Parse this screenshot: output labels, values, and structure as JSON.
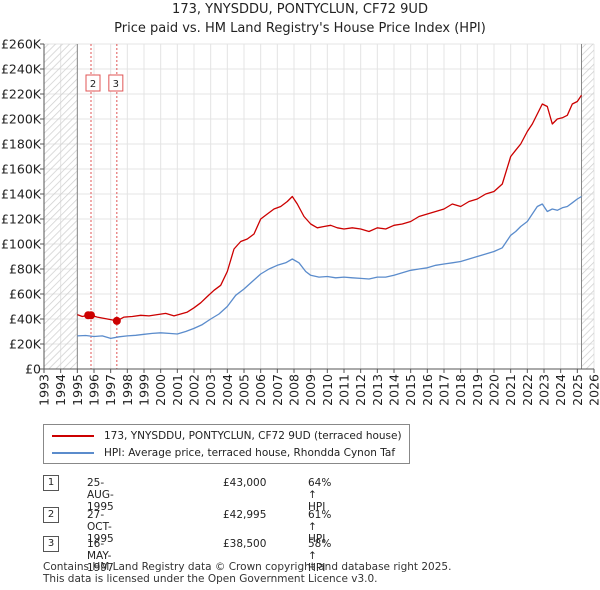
{
  "chart_data": {
    "type": "line",
    "title": "173, YNYSDDU, PONTYCLUN, CF72 9UD",
    "subtitle": "Price paid vs. HM Land Registry's House Price Index (HPI)",
    "xlim": [
      1993,
      2026
    ],
    "ylim": [
      0,
      260000
    ],
    "y_ticks": [
      {
        "v": 0,
        "label": "£0"
      },
      {
        "v": 20000,
        "label": "£20K"
      },
      {
        "v": 40000,
        "label": "£40K"
      },
      {
        "v": 60000,
        "label": "£60K"
      },
      {
        "v": 80000,
        "label": "£80K"
      },
      {
        "v": 100000,
        "label": "£100K"
      },
      {
        "v": 120000,
        "label": "£120K"
      },
      {
        "v": 140000,
        "label": "£140K"
      },
      {
        "v": 160000,
        "label": "£160K"
      },
      {
        "v": 180000,
        "label": "£180K"
      },
      {
        "v": 200000,
        "label": "£200K"
      },
      {
        "v": 220000,
        "label": "£220K"
      },
      {
        "v": 240000,
        "label": "£240K"
      },
      {
        "v": 260000,
        "label": "£260K"
      }
    ],
    "x_ticks": [
      "1993",
      "1994",
      "1995",
      "1996",
      "1997",
      "1998",
      "1999",
      "2000",
      "2001",
      "2002",
      "2003",
      "2004",
      "2005",
      "2006",
      "2007",
      "2008",
      "2009",
      "2010",
      "2011",
      "2012",
      "2013",
      "2014",
      "2015",
      "2016",
      "2017",
      "2018",
      "2019",
      "2020",
      "2021",
      "2022",
      "2023",
      "2024",
      "2025",
      "2026"
    ],
    "hatched_regions": [
      [
        1993,
        1995.0
      ],
      [
        2025.25,
        2026
      ]
    ],
    "series": [
      {
        "name": "173, YNYSDDU, PONTYCLUN, CF72 9UD (terraced house)",
        "color": "#cc0000",
        "x": [
          1995.0,
          1995.3,
          1995.65,
          1995.82,
          1996.2,
          1996.6,
          1997.0,
          1997.37,
          1997.8,
          1998.3,
          1998.8,
          1999.3,
          1999.8,
          2000.3,
          2000.8,
          2001.2,
          2001.6,
          2002.0,
          2002.4,
          2002.8,
          2003.2,
          2003.6,
          2004.0,
          2004.4,
          2004.8,
          2005.2,
          2005.6,
          2006.0,
          2006.4,
          2006.8,
          2007.2,
          2007.6,
          2007.9,
          2008.2,
          2008.6,
          2009.0,
          2009.4,
          2009.8,
          2010.2,
          2010.6,
          2011.0,
          2011.5,
          2012.0,
          2012.5,
          2013.0,
          2013.5,
          2014.0,
          2014.5,
          2015.0,
          2015.5,
          2016.0,
          2016.5,
          2017.0,
          2017.5,
          2018.0,
          2018.5,
          2019.0,
          2019.5,
          2020.0,
          2020.5,
          2021.0,
          2021.3,
          2021.6,
          2022.0,
          2022.3,
          2022.6,
          2022.9,
          2023.2,
          2023.5,
          2023.8,
          2024.1,
          2024.4,
          2024.7,
          2025.0,
          2025.25
        ],
        "y": [
          43500,
          42000,
          43000,
          42995,
          41500,
          40500,
          39500,
          38500,
          41500,
          42000,
          43000,
          42500,
          43500,
          44500,
          42500,
          44000,
          45500,
          49000,
          53000,
          58000,
          63000,
          67000,
          78000,
          96000,
          102000,
          104000,
          108000,
          120000,
          124000,
          128000,
          130000,
          134000,
          138000,
          132000,
          122000,
          116000,
          113000,
          114000,
          115000,
          113000,
          112000,
          113000,
          112000,
          110000,
          113000,
          112000,
          115000,
          116000,
          118000,
          122000,
          124000,
          126000,
          128000,
          132000,
          130000,
          134000,
          136000,
          140000,
          142000,
          148000,
          170000,
          175000,
          180000,
          190000,
          196000,
          204000,
          212000,
          210000,
          196000,
          200000,
          201000,
          203000,
          212000,
          214000,
          219000
        ]
      },
      {
        "name": "HPI: Average price, terraced house, Rhondda Cynon Taf",
        "color": "#5b8ccc",
        "x": [
          1995.0,
          1995.5,
          1996.0,
          1996.5,
          1997.0,
          1997.5,
          1998.0,
          1998.5,
          1999.0,
          1999.5,
          2000.0,
          2000.5,
          2001.0,
          2001.5,
          2002.0,
          2002.5,
          2003.0,
          2003.5,
          2004.0,
          2004.5,
          2005.0,
          2005.5,
          2006.0,
          2006.5,
          2007.0,
          2007.5,
          2007.9,
          2008.3,
          2008.7,
          2009.0,
          2009.5,
          2010.0,
          2010.5,
          2011.0,
          2011.5,
          2012.0,
          2012.5,
          2013.0,
          2013.5,
          2014.0,
          2014.5,
          2015.0,
          2015.5,
          2016.0,
          2016.5,
          2017.0,
          2017.5,
          2018.0,
          2018.5,
          2019.0,
          2019.5,
          2020.0,
          2020.5,
          2021.0,
          2021.3,
          2021.6,
          2022.0,
          2022.3,
          2022.6,
          2022.9,
          2023.2,
          2023.5,
          2023.8,
          2024.1,
          2024.4,
          2024.7,
          2025.0,
          2025.25
        ],
        "y": [
          26500,
          26800,
          26000,
          26500,
          24500,
          25800,
          26500,
          27000,
          27800,
          28500,
          29000,
          28500,
          28000,
          30000,
          32500,
          35500,
          40000,
          44000,
          50000,
          59000,
          64000,
          70000,
          76000,
          80000,
          83000,
          85000,
          88000,
          85000,
          78000,
          75000,
          73500,
          74000,
          73000,
          73500,
          73000,
          72500,
          72000,
          73500,
          73500,
          75000,
          77000,
          79000,
          80000,
          81000,
          83000,
          84000,
          85000,
          86000,
          88000,
          90000,
          92000,
          94000,
          97000,
          107000,
          110000,
          114000,
          118000,
          124000,
          130000,
          132000,
          126000,
          128000,
          127000,
          129000,
          130000,
          133000,
          136000,
          138000
        ]
      }
    ],
    "sales": [
      {
        "label": "2",
        "x": 1995.82,
        "y": 42995
      },
      {
        "label": "3",
        "x": 1997.37,
        "y": 38500
      }
    ],
    "marker_points": [
      {
        "x": 1995.65,
        "y": 43000
      },
      {
        "x": 1995.82,
        "y": 42995
      },
      {
        "x": 1997.37,
        "y": 38500
      }
    ]
  },
  "legend": {
    "items": [
      {
        "label": "173, YNYSDDU, PONTYCLUN, CF72 9UD (terraced house)",
        "color": "#cc0000"
      },
      {
        "label": "HPI: Average price, terraced house, Rhondda Cynon Taf",
        "color": "#5b8ccc"
      }
    ]
  },
  "transactions": [
    {
      "num": "1",
      "date": "25-AUG-1995",
      "price": "£43,000",
      "hpi": "64% ↑ HPI"
    },
    {
      "num": "2",
      "date": "27-OCT-1995",
      "price": "£42,995",
      "hpi": "61% ↑ HPI"
    },
    {
      "num": "3",
      "date": "16-MAY-1997",
      "price": "£38,500",
      "hpi": "58% ↑ HPI"
    }
  ],
  "footer": {
    "line1": "Contains HM Land Registry data © Crown copyright and database right 2025.",
    "line2": "This data is licensed under the Open Government Licence v3.0."
  }
}
